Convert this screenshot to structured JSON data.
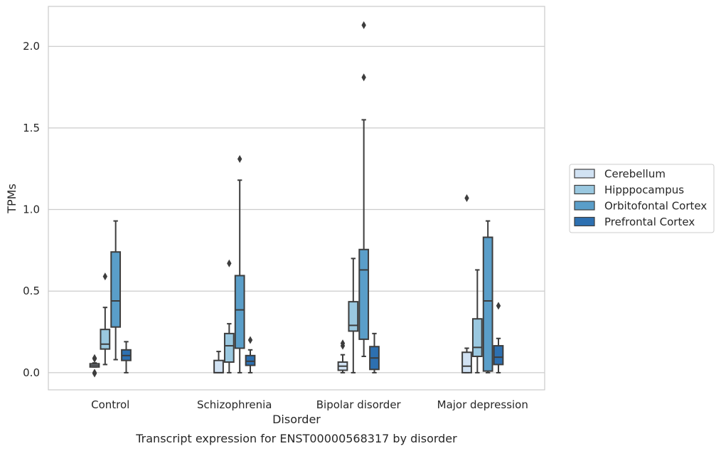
{
  "chart_data": {
    "type": "box",
    "caption": "Transcript expression for ENST00000568317 by disorder",
    "xlabel": "Disorder",
    "ylabel": "TPMs",
    "ylim": [
      -0.105,
      2.245
    ],
    "yticks": [
      0.0,
      0.5,
      1.0,
      1.5,
      2.0
    ],
    "ytick_labels": [
      "0.0",
      "0.5",
      "1.0",
      "1.5",
      "2.0"
    ],
    "grid": "horizontal",
    "legend_position": "right",
    "categories": [
      "Control",
      "Schizophrenia",
      "Bipolar disorder",
      "Major depression"
    ],
    "series": [
      {
        "name": "Cerebellum",
        "color": "#d1e2f3",
        "boxes": [
          {
            "q1": 0.035,
            "median": 0.045,
            "q3": 0.055,
            "whisker_low": 0.035,
            "whisker_high": 0.06,
            "outliers": [
              0.09,
              0.085,
              0.0,
              -0.005
            ]
          },
          {
            "q1": 0.0,
            "median": 0.0,
            "q3": 0.075,
            "whisker_low": 0.0,
            "whisker_high": 0.13,
            "outliers": []
          },
          {
            "q1": 0.015,
            "median": 0.04,
            "q3": 0.065,
            "whisker_low": 0.0,
            "whisker_high": 0.11,
            "outliers": [
              0.18,
              0.165
            ]
          },
          {
            "q1": 0.0,
            "median": 0.04,
            "q3": 0.125,
            "whisker_low": 0.0,
            "whisker_high": 0.15,
            "outliers": [
              1.07
            ]
          }
        ]
      },
      {
        "name": "Hipppocampus",
        "color": "#9ac8e0",
        "boxes": [
          {
            "q1": 0.145,
            "median": 0.175,
            "q3": 0.265,
            "whisker_low": 0.05,
            "whisker_high": 0.4,
            "outliers": [
              0.59
            ]
          },
          {
            "q1": 0.065,
            "median": 0.165,
            "q3": 0.24,
            "whisker_low": 0.0,
            "whisker_high": 0.3,
            "outliers": [
              0.67
            ]
          },
          {
            "q1": 0.255,
            "median": 0.29,
            "q3": 0.435,
            "whisker_low": 0.0,
            "whisker_high": 0.7,
            "outliers": []
          },
          {
            "q1": 0.1,
            "median": 0.155,
            "q3": 0.33,
            "whisker_low": 0.0,
            "whisker_high": 0.63,
            "outliers": []
          }
        ]
      },
      {
        "name": "Orbitofontal Cortex",
        "color": "#5a9ec9",
        "boxes": [
          {
            "q1": 0.28,
            "median": 0.44,
            "q3": 0.74,
            "whisker_low": 0.08,
            "whisker_high": 0.93,
            "outliers": []
          },
          {
            "q1": 0.15,
            "median": 0.385,
            "q3": 0.595,
            "whisker_low": 0.0,
            "whisker_high": 1.18,
            "outliers": [
              1.31
            ]
          },
          {
            "q1": 0.205,
            "median": 0.63,
            "q3": 0.755,
            "whisker_low": 0.1,
            "whisker_high": 1.55,
            "outliers": [
              1.81,
              2.13
            ]
          },
          {
            "q1": 0.01,
            "median": 0.44,
            "q3": 0.83,
            "whisker_low": 0.0,
            "whisker_high": 0.93,
            "outliers": []
          }
        ]
      },
      {
        "name": "Prefrontal Cortex",
        "color": "#2d70b1",
        "boxes": [
          {
            "q1": 0.075,
            "median": 0.105,
            "q3": 0.14,
            "whisker_low": 0.0,
            "whisker_high": 0.19,
            "outliers": []
          },
          {
            "q1": 0.045,
            "median": 0.07,
            "q3": 0.105,
            "whisker_low": 0.0,
            "whisker_high": 0.14,
            "outliers": [
              0.2
            ]
          },
          {
            "q1": 0.02,
            "median": 0.09,
            "q3": 0.16,
            "whisker_low": 0.0,
            "whisker_high": 0.24,
            "outliers": []
          },
          {
            "q1": 0.05,
            "median": 0.095,
            "q3": 0.165,
            "whisker_low": 0.0,
            "whisker_high": 0.21,
            "outliers": [
              0.41
            ]
          }
        ]
      }
    ]
  }
}
